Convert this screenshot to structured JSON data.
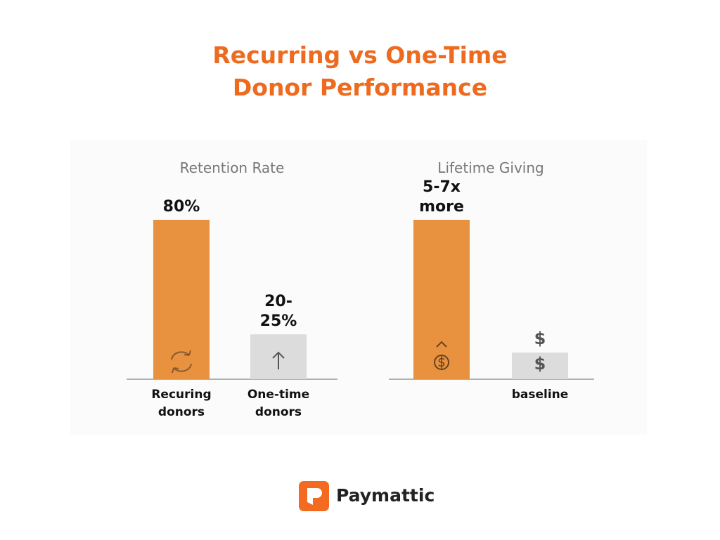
{
  "title": "Recurring vs One-Time Donor Performance",
  "chart_data": [
    {
      "type": "bar",
      "title": "Retention Rate",
      "categories": [
        "Recuring donors",
        "One-time donors"
      ],
      "values": [
        80,
        22.5
      ],
      "value_labels": [
        "80%",
        "20-25%"
      ],
      "colors": [
        "#e8913f",
        "#dcdcdc"
      ],
      "ylim": [
        0,
        80
      ]
    },
    {
      "type": "bar",
      "title": "Lifetime Giving",
      "categories": [
        null,
        "baseline"
      ],
      "values": [
        6,
        1
      ],
      "value_labels": [
        "5-7x more",
        null
      ],
      "annotations": [
        "$",
        "$"
      ],
      "colors": [
        "#e8913f",
        "#dcdcdc"
      ],
      "ylim": [
        0,
        6
      ]
    }
  ],
  "logo": {
    "text": "Paymattic"
  }
}
